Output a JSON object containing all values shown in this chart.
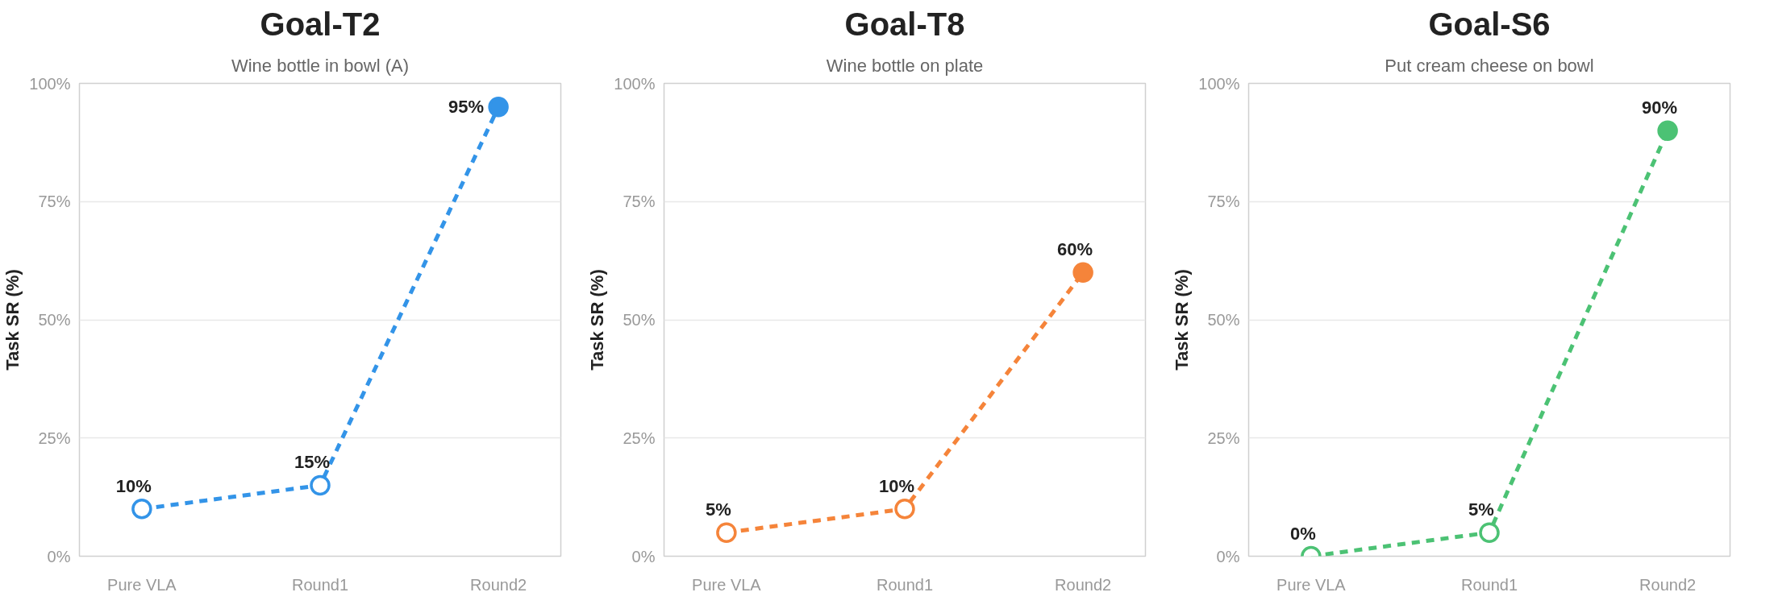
{
  "chart_data": [
    {
      "type": "line",
      "title": "Goal-T2",
      "subtitle": "Wine bottle in bowl (A)",
      "ylabel": "Task SR (%)",
      "categories": [
        "Pure VLA",
        "Round1",
        "Round2"
      ],
      "series": [
        {
          "color": "#3394e8",
          "values": [
            10,
            15,
            95
          ],
          "value_labels": [
            "10%",
            "15%",
            "95%"
          ]
        }
      ],
      "ylim": [
        0,
        100
      ],
      "yticks": [
        {
          "value": 0,
          "label": "0%"
        },
        {
          "value": 25,
          "label": "25%"
        },
        {
          "value": 50,
          "label": "50%"
        },
        {
          "value": 75,
          "label": "75%"
        },
        {
          "value": 100,
          "label": "100%"
        }
      ],
      "grid": "y",
      "marker": "circle",
      "line_style": "dashed"
    },
    {
      "type": "line",
      "title": "Goal-T8",
      "subtitle": "Wine bottle on plate",
      "ylabel": "Task SR (%)",
      "categories": [
        "Pure VLA",
        "Round1",
        "Round2"
      ],
      "series": [
        {
          "color": "#f5843a",
          "values": [
            5,
            10,
            60
          ],
          "value_labels": [
            "5%",
            "10%",
            "60%"
          ]
        }
      ],
      "ylim": [
        0,
        100
      ],
      "yticks": [
        {
          "value": 0,
          "label": "0%"
        },
        {
          "value": 25,
          "label": "25%"
        },
        {
          "value": 50,
          "label": "50%"
        },
        {
          "value": 75,
          "label": "75%"
        },
        {
          "value": 100,
          "label": "100%"
        }
      ],
      "grid": "y",
      "marker": "circle",
      "line_style": "dashed"
    },
    {
      "type": "line",
      "title": "Goal-S6",
      "subtitle": "Put cream cheese on bowl",
      "ylabel": "Task SR (%)",
      "categories": [
        "Pure VLA",
        "Round1",
        "Round2"
      ],
      "series": [
        {
          "color": "#4cc274",
          "values": [
            0,
            5,
            90
          ],
          "value_labels": [
            "0%",
            "5%",
            "90%"
          ]
        }
      ],
      "ylim": [
        0,
        100
      ],
      "yticks": [
        {
          "value": 0,
          "label": "0%"
        },
        {
          "value": 25,
          "label": "25%"
        },
        {
          "value": 50,
          "label": "50%"
        },
        {
          "value": 75,
          "label": "75%"
        },
        {
          "value": 100,
          "label": "100%"
        }
      ],
      "grid": "y",
      "marker": "circle",
      "line_style": "dashed"
    }
  ]
}
